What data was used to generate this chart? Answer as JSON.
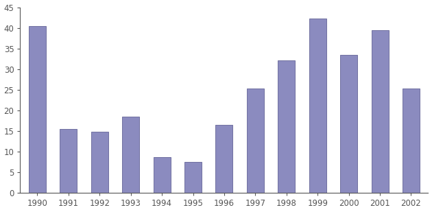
{
  "years": [
    1990,
    1991,
    1992,
    1993,
    1994,
    1995,
    1996,
    1997,
    1998,
    1999,
    2000,
    2001,
    2002
  ],
  "values": [
    40.5,
    15.5,
    14.8,
    18.5,
    8.7,
    7.5,
    16.5,
    25.3,
    32.2,
    42.3,
    33.5,
    39.5,
    25.3
  ],
  "bar_color": "#8b8bbf",
  "bar_edge_color": "#7070a0",
  "ylim": [
    0,
    45
  ],
  "yticks": [
    0,
    5,
    10,
    15,
    20,
    25,
    30,
    35,
    40,
    45
  ],
  "background_color": "#ffffff",
  "bar_width": 0.55,
  "tick_color": "#555555",
  "spine_color": "#555555",
  "label_fontsize": 8.5
}
